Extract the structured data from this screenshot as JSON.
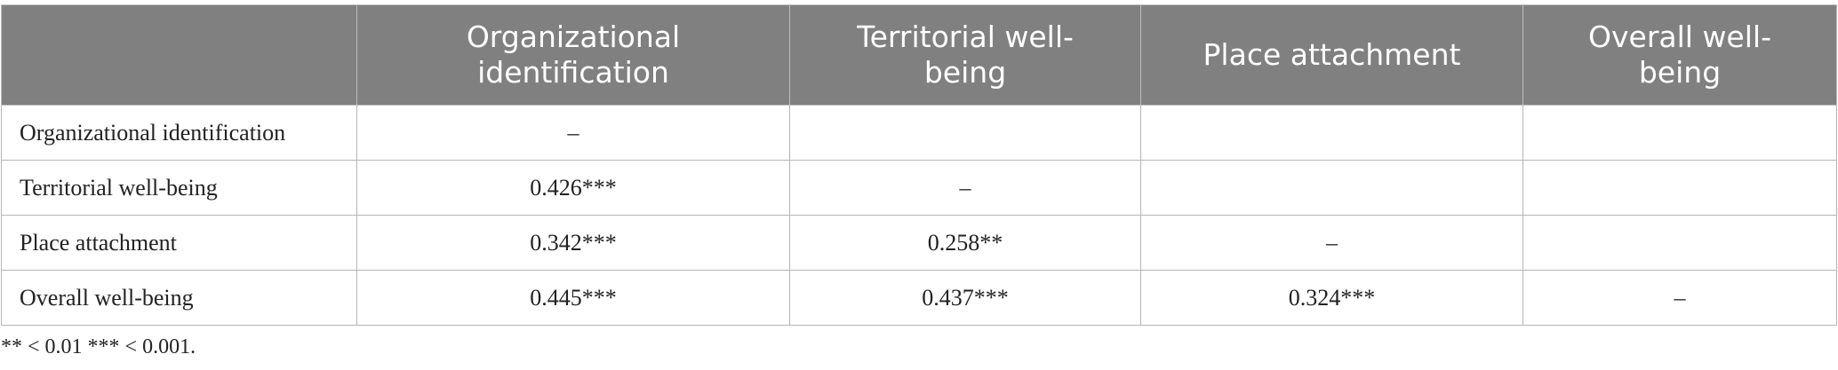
{
  "table": {
    "header": [
      "Organizational identification",
      "Territorial well-being",
      "Place attachment",
      "Overall well-being"
    ],
    "rows": [
      {
        "label": "Organizational identification",
        "cells": [
          "–"
        ]
      },
      {
        "label": "Territorial well-being",
        "cells": [
          "0.426***",
          "–"
        ]
      },
      {
        "label": "Place attachment",
        "cells": [
          "0.342***",
          "0.258**",
          "–"
        ]
      },
      {
        "label": "Overall well-being",
        "cells": [
          "0.445***",
          "0.437***",
          "0.324***",
          "–"
        ]
      }
    ],
    "footnote": "** < 0.01 *** < 0.001."
  }
}
